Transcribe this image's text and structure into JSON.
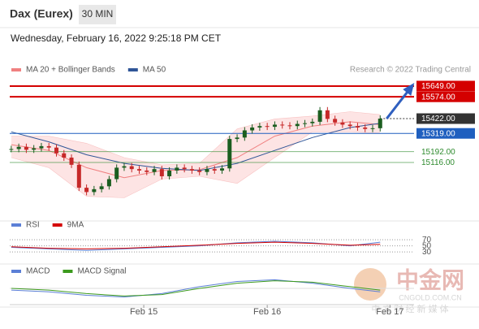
{
  "header": {
    "symbol": "Dax (Eurex)",
    "interval": "30 MIN",
    "datetime": "Wednesday, February 16, 2022 9:25:18 PM CET"
  },
  "watermark": {
    "logo": "中金网",
    "url": "CNGOLD.COM.CN",
    "slogan": "中 文 财 经 新 媒 体"
  },
  "chart_data": [
    {
      "type": "candlestick",
      "credit": "Research © 2022 Trading Central",
      "up_color": "#1b5e20",
      "down_color": "#c62828",
      "xlim": [
        -0.2,
        53.5
      ],
      "ylim": [
        14765,
        15711
      ],
      "xticks": [
        {
          "value": 17.6,
          "label": "Feb 15"
        },
        {
          "value": 34,
          "label": "Feb 16"
        },
        {
          "value": 50.3,
          "label": "Feb 17"
        }
      ],
      "closes": [
        15210,
        15225,
        15205,
        15215,
        15230,
        15220,
        15180,
        15150,
        15100,
        14940,
        14910,
        14930,
        14950,
        15000,
        15080,
        15090,
        15070,
        15060,
        15050,
        15070,
        15020,
        15060,
        15080,
        15070,
        15060,
        15050,
        15070,
        15060,
        15075,
        15280,
        15290,
        15340,
        15360,
        15370,
        15365,
        15380,
        15375,
        15370,
        15385,
        15390,
        15400,
        15480,
        15420,
        15395,
        15380,
        15370,
        15360,
        15350,
        15355,
        15422
      ],
      "band": {
        "name": "MA 20 + Bollinger Bands",
        "color": "#f08080",
        "fill": "#fde4e4",
        "x": [
          0,
          5,
          10,
          15,
          20,
          25,
          30,
          35,
          40,
          45,
          49
        ],
        "upper": [
          15300,
          15300,
          15250,
          15150,
          15100,
          15110,
          15350,
          15420,
          15440,
          15470,
          15450
        ],
        "middle": [
          15240,
          15200,
          15080,
          15010,
          15060,
          15065,
          15150,
          15300,
          15370,
          15400,
          15380
        ],
        "lower": [
          15150,
          15080,
          14880,
          14870,
          15000,
          15020,
          14970,
          15150,
          15330,
          15330,
          15320
        ]
      },
      "series": [
        {
          "name": "MA 50",
          "color": "#2f5597",
          "x": [
            0,
            5,
            10,
            15,
            20,
            25,
            30,
            35,
            40,
            45,
            49
          ],
          "values": [
            15330,
            15260,
            15170,
            15110,
            15075,
            15060,
            15110,
            15200,
            15290,
            15360,
            15390
          ]
        }
      ],
      "levels": [
        {
          "value": 15649,
          "label": "15649.00",
          "color": "#d40000",
          "style": "box"
        },
        {
          "value": 15574,
          "label": "15574.00",
          "color": "#d40000",
          "style": "box"
        },
        {
          "value": 15422,
          "label": "15422.00",
          "color": "#333333",
          "style": "current"
        },
        {
          "value": 15319,
          "label": "15319.00",
          "color": "#1f5fbf",
          "style": "box"
        },
        {
          "value": 15192,
          "label": "15192.00",
          "color": "#2e8b2e",
          "style": "text"
        },
        {
          "value": 15116,
          "label": "15116.00",
          "color": "#2e8b2e",
          "style": "text"
        }
      ]
    },
    {
      "type": "line",
      "xlim": [
        -0.2,
        53.5
      ],
      "ylim": [
        17,
        97
      ],
      "yticks": [
        70,
        50,
        30
      ],
      "series": [
        {
          "name": "RSI",
          "color": "#5b7fd6",
          "x": [
            0,
            5,
            10,
            15,
            20,
            25,
            30,
            35,
            40,
            45,
            49
          ],
          "values": [
            45,
            40,
            35,
            40,
            45,
            50,
            60,
            65,
            60,
            50,
            62
          ]
        },
        {
          "name": "9MA",
          "color": "#d40000",
          "x": [
            0,
            5,
            10,
            15,
            20,
            25,
            30,
            35,
            40,
            45,
            49
          ],
          "values": [
            47,
            42,
            40,
            42,
            47,
            52,
            58,
            62,
            58,
            52,
            55
          ]
        }
      ]
    },
    {
      "type": "line",
      "xlim": [
        -0.2,
        53.5
      ],
      "ylim": [
        -40,
        40
      ],
      "series": [
        {
          "name": "MACD",
          "color": "#5b7fd6",
          "x": [
            0,
            5,
            10,
            15,
            20,
            25,
            30,
            35,
            40,
            45,
            49
          ],
          "values": [
            -5,
            -10,
            -20,
            -25,
            -15,
            5,
            20,
            25,
            15,
            0,
            -10
          ]
        },
        {
          "name": "MACD Signal",
          "color": "#3c9a1e",
          "x": [
            0,
            5,
            10,
            15,
            20,
            25,
            30,
            35,
            40,
            45,
            49
          ],
          "values": [
            0,
            -5,
            -15,
            -22,
            -18,
            0,
            15,
            22,
            18,
            5,
            -5
          ]
        }
      ]
    }
  ]
}
